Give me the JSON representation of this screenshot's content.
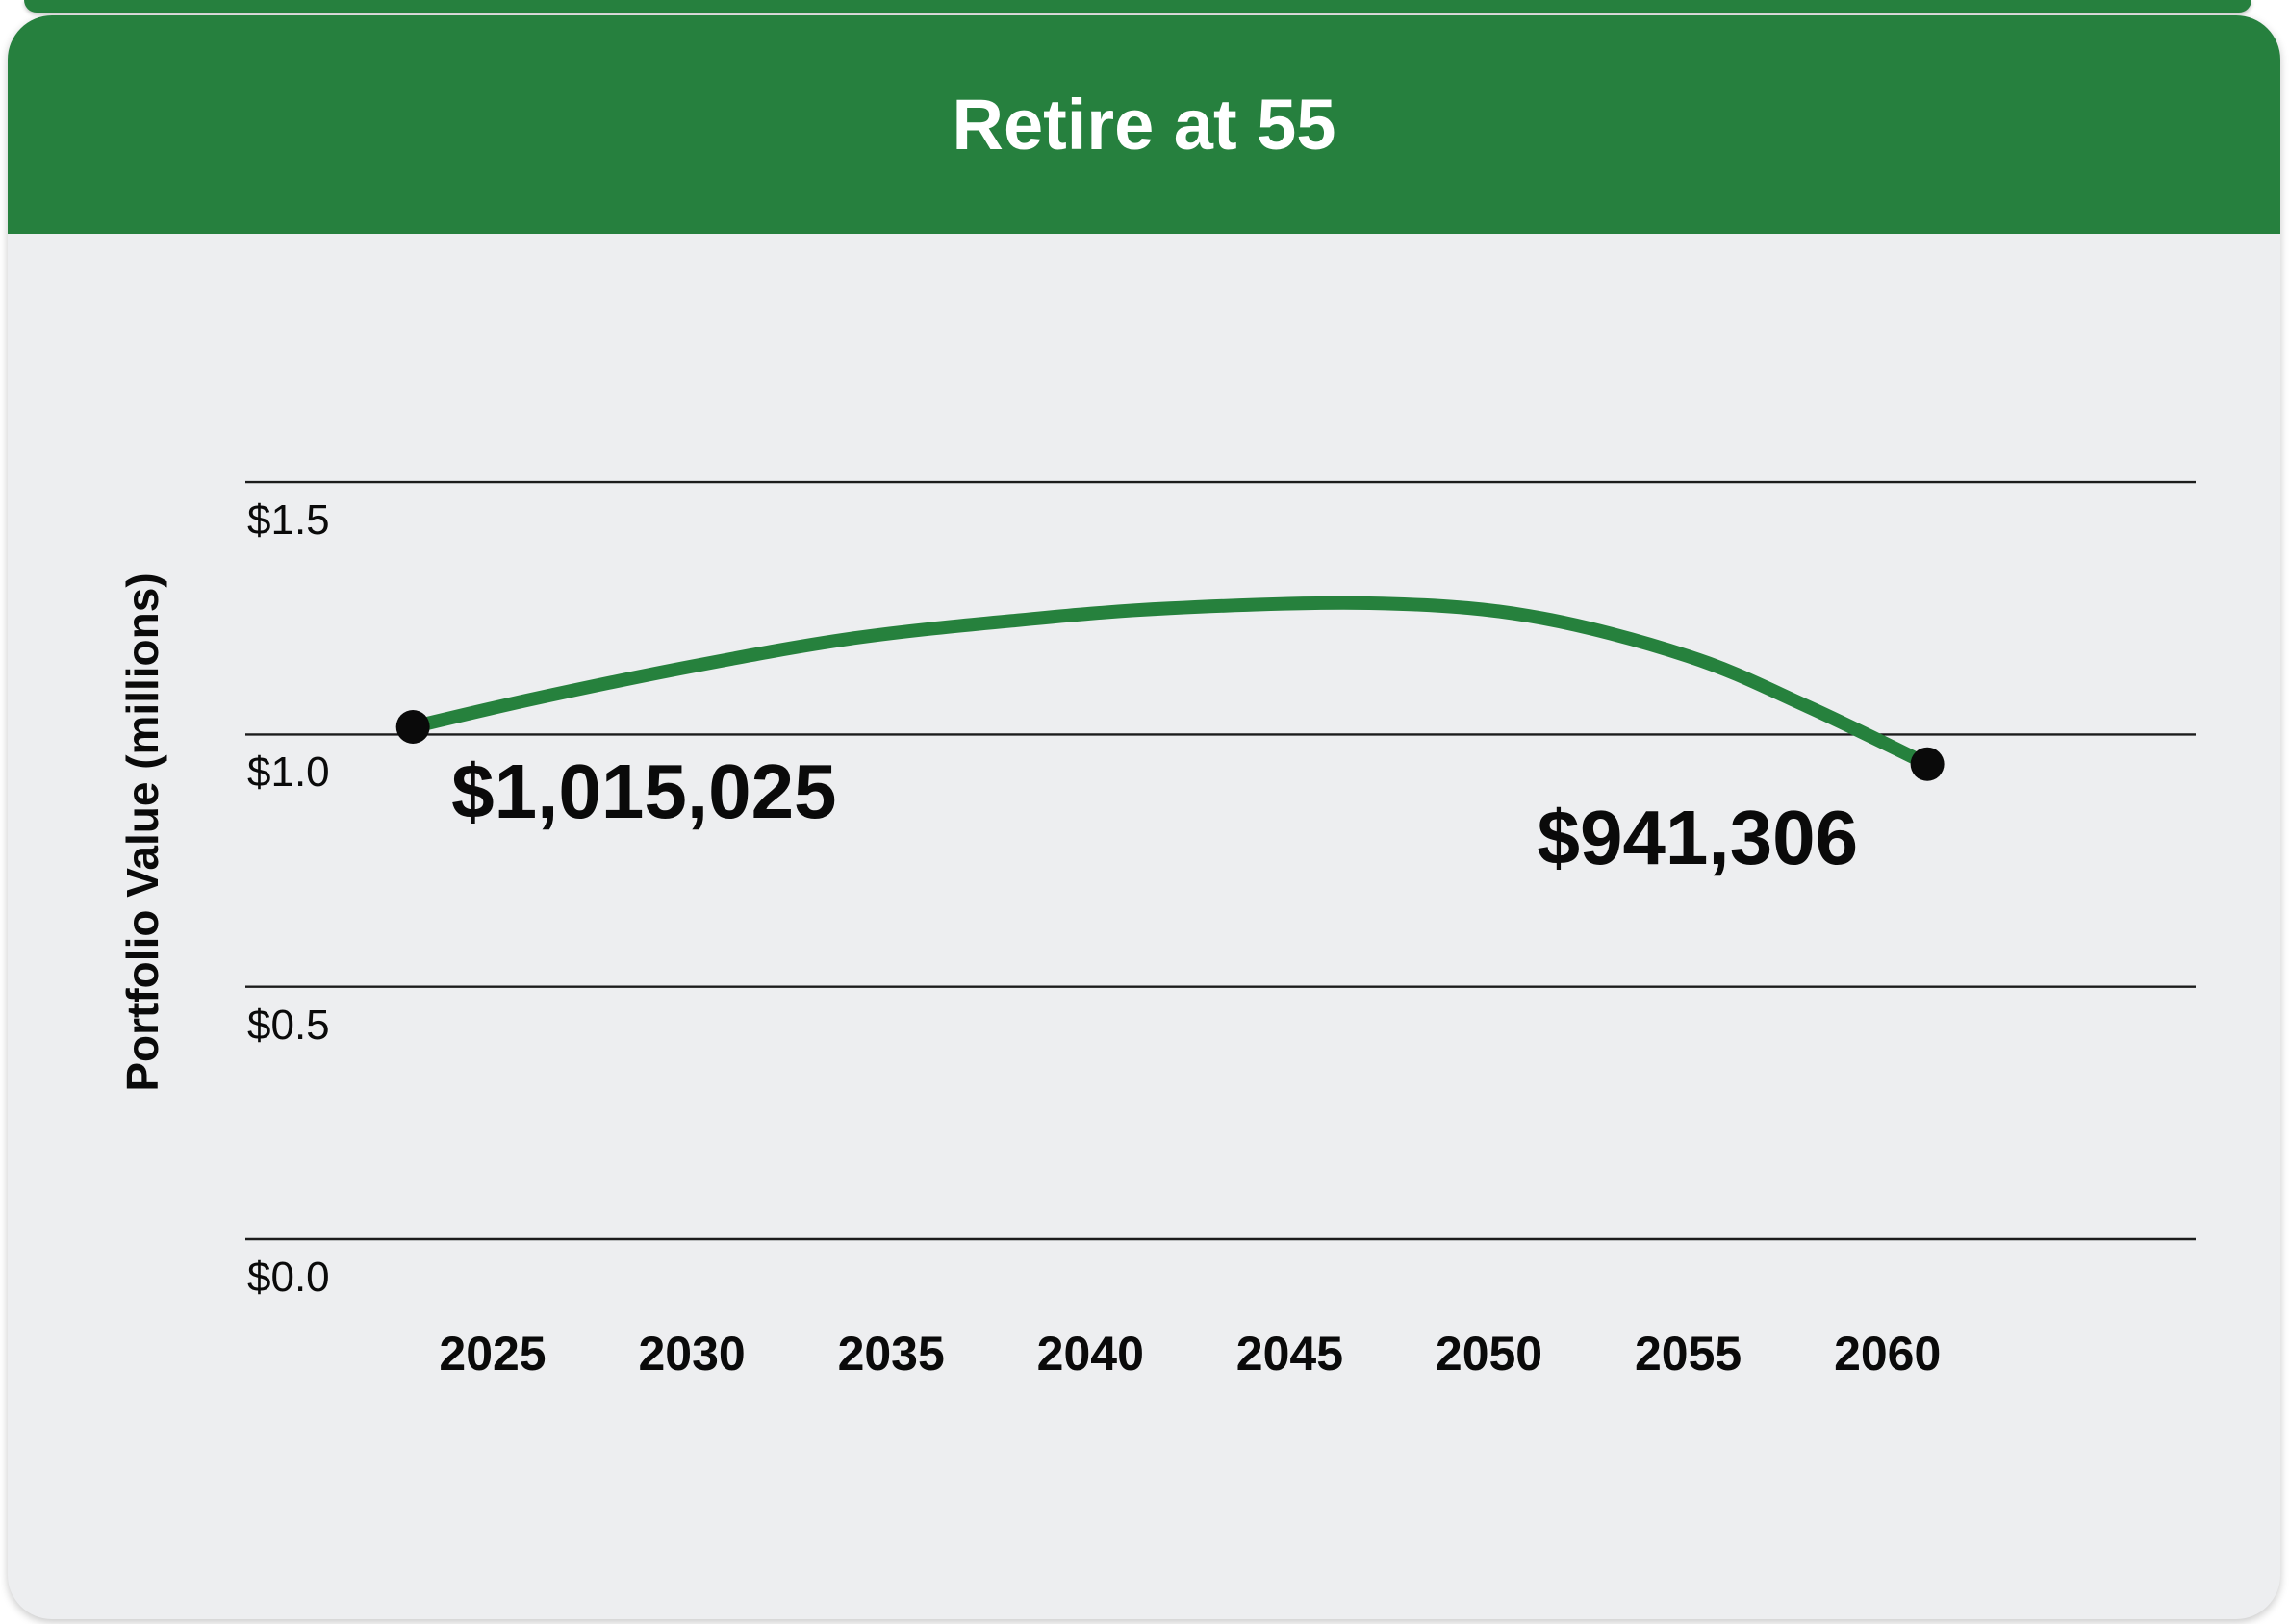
{
  "colors": {
    "green": "#26803E",
    "card_bg": "#EDEEF0",
    "gridline": "#1C1C1C",
    "text": "#0A0A0A",
    "title_text": "#FFFFFF",
    "dot": "#0A0A0A"
  },
  "chart_data": {
    "type": "line",
    "title": "Retire at 55",
    "ylabel": "Portfolio Value (millions)",
    "xlabel": "",
    "xlim": [
      2019,
      2068
    ],
    "ylim": [
      0,
      1.65
    ],
    "grid": "horizontal",
    "legend": false,
    "y_ticks": [
      {
        "value": 1.5,
        "label": "$1.5"
      },
      {
        "value": 1.0,
        "label": "$1.0"
      },
      {
        "value": 0.5,
        "label": "$0.5"
      },
      {
        "value": 0.0,
        "label": "$0.0"
      }
    ],
    "x_ticks": [
      {
        "value": 2025,
        "label": "2025"
      },
      {
        "value": 2030,
        "label": "2030"
      },
      {
        "value": 2035,
        "label": "2035"
      },
      {
        "value": 2040,
        "label": "2040"
      },
      {
        "value": 2045,
        "label": "2045"
      },
      {
        "value": 2050,
        "label": "2050"
      },
      {
        "value": 2055,
        "label": "2055"
      },
      {
        "value": 2060,
        "label": "2060"
      }
    ],
    "series": [
      {
        "name": "Portfolio Value",
        "color": "#26813D",
        "units": "USD",
        "points": [
          [
            2023,
            1015025
          ],
          [
            2026,
            1070000
          ],
          [
            2030,
            1135000
          ],
          [
            2034,
            1190000
          ],
          [
            2038,
            1225000
          ],
          [
            2042,
            1250000
          ],
          [
            2047,
            1260000
          ],
          [
            2051,
            1235000
          ],
          [
            2055,
            1155000
          ],
          [
            2058,
            1055000
          ],
          [
            2061,
            941306
          ]
        ]
      }
    ],
    "annotations": [
      {
        "text": "$1,015,025",
        "year": 2023,
        "value": 1015025
      },
      {
        "text": "$941,306",
        "year": 2061,
        "value": 941306
      }
    ]
  }
}
